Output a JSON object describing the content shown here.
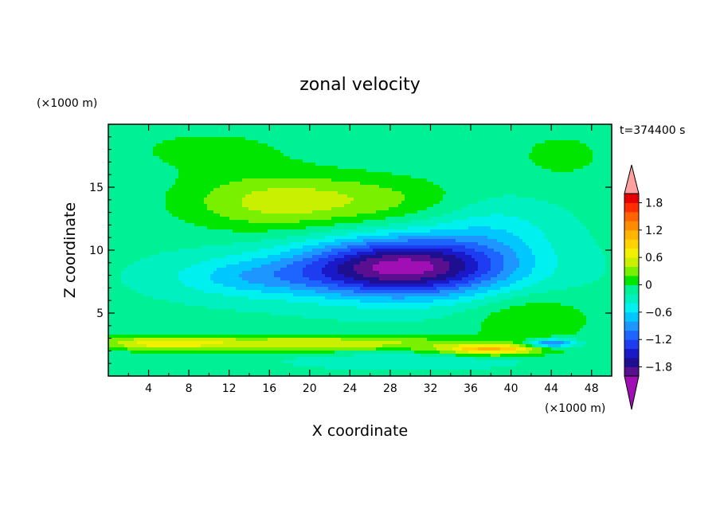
{
  "chart_data": {
    "type": "heatmap",
    "title": "zonal velocity",
    "xlabel": "X coordinate",
    "ylabel": "Z coordinate",
    "x_unit": "(×1000 m)",
    "y_unit": "(×1000 m)",
    "time_label": "t=374400 s",
    "xlim": [
      0,
      50
    ],
    "ylim": [
      0,
      20
    ],
    "x_ticks": [
      4,
      8,
      12,
      16,
      20,
      24,
      28,
      32,
      36,
      40,
      44,
      48
    ],
    "y_ticks": [
      5,
      10,
      15
    ],
    "colorbar": {
      "levels": [
        -2.0,
        -1.8,
        -1.6,
        -1.4,
        -1.2,
        -1.0,
        -0.8,
        -0.6,
        -0.4,
        -0.2,
        0,
        0.2,
        0.4,
        0.6,
        0.8,
        1.0,
        1.2,
        1.4,
        1.6,
        1.8,
        2.0
      ],
      "colors": [
        "#5a0f91",
        "#1d0f8f",
        "#1919c8",
        "#1e3cf0",
        "#1e64ff",
        "#1e96ff",
        "#00c8ff",
        "#00f0f0",
        "#00f0c0",
        "#00f096",
        "#00e600",
        "#78f000",
        "#c8f000",
        "#f0f000",
        "#ffd200",
        "#ffb400",
        "#ff8c00",
        "#ff6400",
        "#ff2d00",
        "#e60000"
      ],
      "under_color": "#a00fb4",
      "over_color": "#ffa0a0",
      "tick_labels": [
        "1.8",
        "1.2",
        "0.6",
        "0",
        "-0.6",
        "-1.2",
        "-1.8"
      ]
    },
    "features": [
      {
        "x": 29.5,
        "z": 8.7,
        "rx": 9.5,
        "rz": 2.3,
        "u": -1.55
      },
      {
        "x": 26.0,
        "z": 8.3,
        "rx": 14.0,
        "rz": 2.2,
        "u": -0.45
      },
      {
        "x": 38.0,
        "z": 11.5,
        "rx": 6.5,
        "rz": 3.0,
        "u": -0.35
      },
      {
        "x": 14.0,
        "z": 7.8,
        "rx": 8.0,
        "rz": 1.5,
        "u": -0.4
      },
      {
        "x": 16.0,
        "z": 13.8,
        "rx": 9.0,
        "rz": 2.3,
        "u": 0.55
      },
      {
        "x": 27.0,
        "z": 14.0,
        "rx": 10.0,
        "rz": 2.0,
        "u": 0.35
      },
      {
        "x": 42.0,
        "z": 4.5,
        "rx": 6.0,
        "rz": 2.0,
        "u": 0.35
      },
      {
        "x": 20.0,
        "z": 2.6,
        "rx": 16.0,
        "rz": 0.6,
        "u": 0.75
      },
      {
        "x": 38.0,
        "z": 2.1,
        "rx": 5.0,
        "rz": 0.45,
        "u": 1.05
      },
      {
        "x": 5.0,
        "z": 2.6,
        "rx": 6.0,
        "rz": 0.55,
        "u": 0.6
      },
      {
        "x": 30.0,
        "z": 1.2,
        "rx": 10.0,
        "rz": 0.6,
        "u": -0.25
      },
      {
        "x": 44.0,
        "z": 2.6,
        "rx": 2.5,
        "rz": 0.35,
        "u": -1.1
      },
      {
        "x": 45.0,
        "z": 17.5,
        "rx": 6.0,
        "rz": 2.5,
        "u": 0.2
      },
      {
        "x": 10.0,
        "z": 18.0,
        "rx": 10.0,
        "rz": 2.0,
        "u": 0.2
      }
    ],
    "background_u": -0.15
  }
}
